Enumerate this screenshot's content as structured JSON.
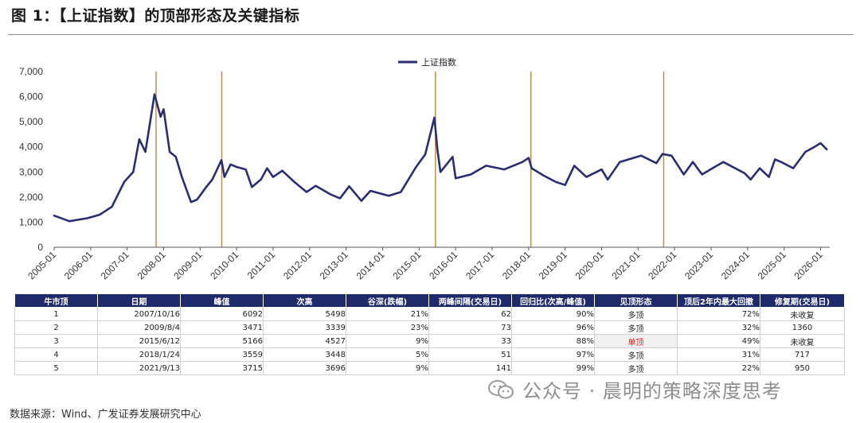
{
  "header": {
    "title": "图 1：【上证指数】的顶部形态及关键指标"
  },
  "chart_data": {
    "type": "line",
    "title": "",
    "xlabel": "",
    "ylabel": "",
    "legend": {
      "position": "top-center",
      "entries": [
        "上证指数"
      ]
    },
    "series": [
      {
        "name": "上证指数",
        "color": "#2a2d6e",
        "points": [
          [
            "2005-01",
            1260
          ],
          [
            "2005-06",
            1040
          ],
          [
            "2005-12",
            1160
          ],
          [
            "2006-04",
            1300
          ],
          [
            "2006-08",
            1620
          ],
          [
            "2006-12",
            2600
          ],
          [
            "2007-03",
            3000
          ],
          [
            "2007-05",
            4300
          ],
          [
            "2007-07",
            3800
          ],
          [
            "2007-10",
            6092
          ],
          [
            "2007-12",
            5200
          ],
          [
            "2008-01",
            5500
          ],
          [
            "2008-03",
            3800
          ],
          [
            "2008-05",
            3600
          ],
          [
            "2008-07",
            2800
          ],
          [
            "2008-10",
            1800
          ],
          [
            "2008-12",
            1900
          ],
          [
            "2009-03",
            2400
          ],
          [
            "2009-05",
            2700
          ],
          [
            "2009-08",
            3471
          ],
          [
            "2009-09",
            2800
          ],
          [
            "2009-11",
            3300
          ],
          [
            "2010-01",
            3200
          ],
          [
            "2010-04",
            3100
          ],
          [
            "2010-06",
            2400
          ],
          [
            "2010-09",
            2700
          ],
          [
            "2010-11",
            3150
          ],
          [
            "2011-01",
            2800
          ],
          [
            "2011-04",
            3050
          ],
          [
            "2011-08",
            2600
          ],
          [
            "2011-12",
            2200
          ],
          [
            "2012-03",
            2450
          ],
          [
            "2012-08",
            2100
          ],
          [
            "2012-11",
            1950
          ],
          [
            "2013-02",
            2430
          ],
          [
            "2013-06",
            1850
          ],
          [
            "2013-09",
            2250
          ],
          [
            "2014-03",
            2050
          ],
          [
            "2014-07",
            2200
          ],
          [
            "2014-12",
            3200
          ],
          [
            "2015-03",
            3700
          ],
          [
            "2015-06",
            5166
          ],
          [
            "2015-07",
            3900
          ],
          [
            "2015-08",
            3000
          ],
          [
            "2015-12",
            3600
          ],
          [
            "2016-01",
            2750
          ],
          [
            "2016-06",
            2900
          ],
          [
            "2016-11",
            3250
          ],
          [
            "2017-05",
            3100
          ],
          [
            "2017-11",
            3400
          ],
          [
            "2018-01",
            3559
          ],
          [
            "2018-02",
            3150
          ],
          [
            "2018-06",
            2850
          ],
          [
            "2018-10",
            2600
          ],
          [
            "2019-01",
            2480
          ],
          [
            "2019-04",
            3250
          ],
          [
            "2019-08",
            2800
          ],
          [
            "2020-01",
            3100
          ],
          [
            "2020-03",
            2700
          ],
          [
            "2020-07",
            3400
          ],
          [
            "2021-02",
            3650
          ],
          [
            "2021-07",
            3350
          ],
          [
            "2021-09",
            3715
          ],
          [
            "2021-12",
            3650
          ],
          [
            "2022-04",
            2900
          ],
          [
            "2022-07",
            3400
          ],
          [
            "2022-10",
            2900
          ],
          [
            "2023-05",
            3400
          ],
          [
            "2023-12",
            2950
          ],
          [
            "2024-02",
            2700
          ],
          [
            "2024-05",
            3150
          ],
          [
            "2024-08",
            2800
          ],
          [
            "2024-10",
            3500
          ],
          [
            "2024-12",
            3400
          ],
          [
            "2025-04",
            3150
          ],
          [
            "2025-08",
            3800
          ],
          [
            "2025-11",
            4000
          ],
          [
            "2026-01",
            4150
          ],
          [
            "2026-03",
            3900
          ]
        ]
      }
    ],
    "markers": [
      "2007-10-16",
      "2009-08-04",
      "2015-06-12",
      "2018-01-24",
      "2021-09-13"
    ],
    "marker_color": "#c0904a",
    "ylim": [
      0,
      7000
    ],
    "yticks": [
      "0",
      "1,000",
      "2,000",
      "3,000",
      "4,000",
      "5,000",
      "6,000",
      "7,000"
    ],
    "xlim": [
      "2005-01",
      "2026-04"
    ],
    "xticks": [
      "2005-01",
      "2006-01",
      "2007-01",
      "2008-01",
      "2009-01",
      "2010-01",
      "2011-01",
      "2012-01",
      "2013-01",
      "2014-01",
      "2015-01",
      "2016-01",
      "2017-01",
      "2018-01",
      "2019-01",
      "2020-01",
      "2021-01",
      "2022-01",
      "2023-01",
      "2024-01",
      "2025-01",
      "2026-01"
    ],
    "grid": false
  },
  "table": {
    "headers": [
      "牛市顶",
      "日期",
      "峰值",
      "次高",
      "谷深(跌幅)",
      "两峰间隔(交易日)",
      "回归比(次高/峰值)",
      "见顶形态",
      "顶后2年内最大回撤",
      "修复期(交易日)"
    ],
    "rows": [
      [
        "1",
        "2007/10/16",
        "6092",
        "5498",
        "21%",
        "62",
        "90%",
        "多顶",
        "72%",
        "未收复"
      ],
      [
        "2",
        "2009/8/4",
        "3471",
        "3339",
        "23%",
        "73",
        "96%",
        "多顶",
        "32%",
        "1360"
      ],
      [
        "3",
        "2015/6/12",
        "5166",
        "4527",
        "9%",
        "33",
        "88%",
        "单顶",
        "49%",
        "未收复"
      ],
      [
        "4",
        "2018/1/24",
        "3559",
        "3448",
        "5%",
        "51",
        "97%",
        "多顶",
        "31%",
        "717"
      ],
      [
        "5",
        "2021/9/13",
        "3715",
        "3696",
        "9%",
        "141",
        "99%",
        "多顶",
        "22%",
        "950"
      ]
    ],
    "highlight_color": "#d81e1e"
  },
  "footer": {
    "source": "数据来源：Wind、广发证券发展研究中心",
    "watermark": "公众号 · 晨明的策略深度思考"
  }
}
